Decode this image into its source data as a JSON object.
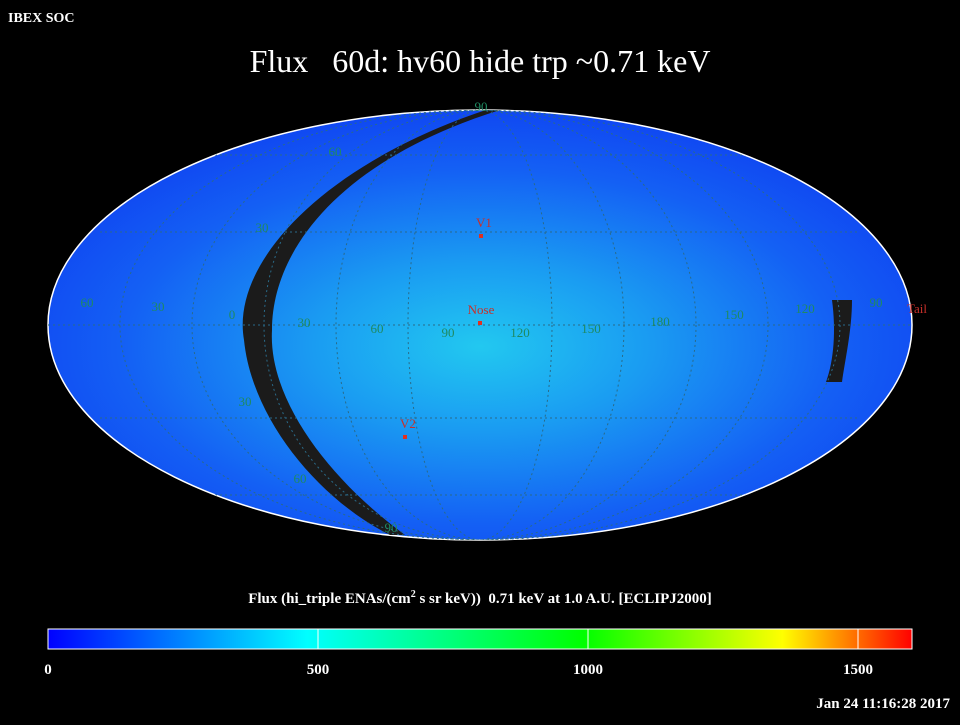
{
  "header": {
    "label": "IBEX SOC",
    "title": "Flux   60d: hv60 hide trp ~0.71 keV",
    "timestamp": "Jan 24 11:16:28 2017"
  },
  "map": {
    "grid_labels": [
      "90",
      "60",
      "30",
      "60",
      "30",
      "0",
      "30",
      "60",
      "90",
      "120",
      "150",
      "180",
      "150",
      "120",
      "90",
      "30",
      "60",
      "90"
    ],
    "markers": [
      "V1",
      "Nose",
      "V2",
      "Tail"
    ]
  },
  "colorbar": {
    "title_parts": [
      "Flux (hi_triple ENAs/(cm",
      "2",
      " s sr keV))  0.71 keV at 1.0 A.U. [ECLIPJ2000]"
    ],
    "lim": [
      0,
      1600
    ],
    "ticks": [
      0,
      500,
      1000,
      1500
    ]
  }
}
